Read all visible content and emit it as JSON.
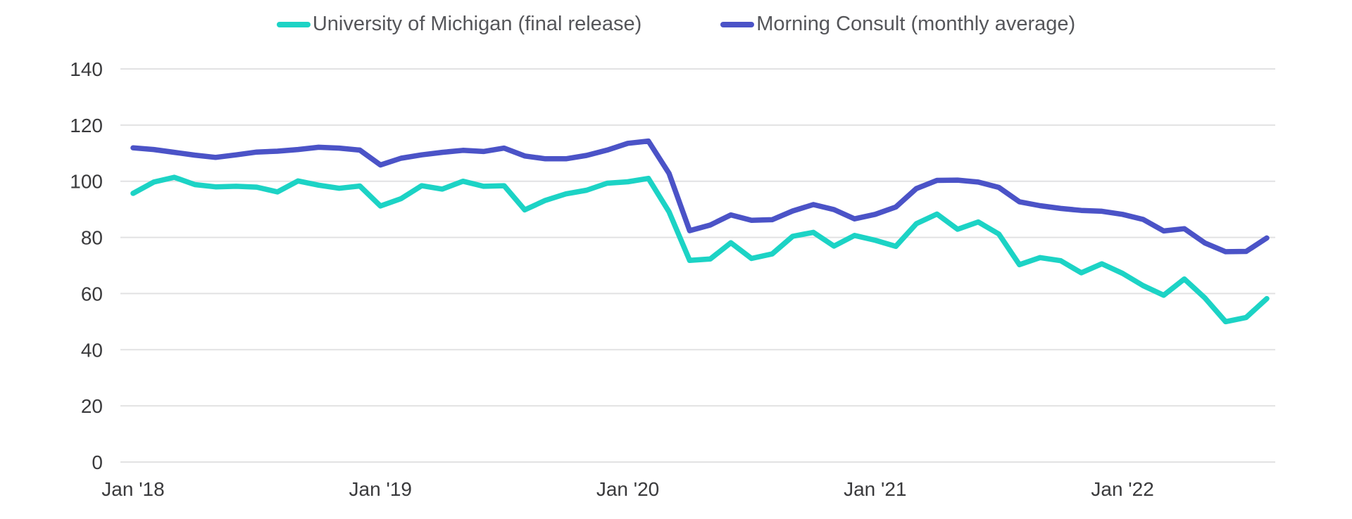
{
  "legend": {
    "items": [
      {
        "label": "University of Michigan (final release)",
        "color": "#1CD3C5"
      },
      {
        "label": "Morning Consult (monthly average)",
        "color": "#4B53C7"
      }
    ]
  },
  "colors": {
    "umich_line": "#1CD3C5",
    "morning_consult_line": "#4B53C7",
    "gridline": "#E2E2E3",
    "axis_text": "#3A3A3C",
    "legend_text": "#55565A",
    "background": "#FFFFFF"
  },
  "chart_data": {
    "type": "line",
    "title": "",
    "xlabel": "",
    "ylabel": "",
    "x_unit": "month",
    "x_start": "Jan 2018",
    "x_end": "Aug 2022",
    "n_points": 56,
    "ylim": [
      0,
      140
    ],
    "y_ticks": [
      0,
      20,
      40,
      60,
      80,
      100,
      120,
      140
    ],
    "x_tick_labels": [
      "Jan '18",
      "Jan '19",
      "Jan '20",
      "Jan '21",
      "Jan '22"
    ],
    "x_tick_month_indices": [
      0,
      12,
      24,
      36,
      48
    ],
    "grid": "horizontal",
    "legend_position": "top-center",
    "series": [
      {
        "name": "University of Michigan (final release)",
        "color": "#1CD3C5",
        "values": [
          95.7,
          99.7,
          101.4,
          98.8,
          98.0,
          98.2,
          97.9,
          96.2,
          100.1,
          98.6,
          97.5,
          98.3,
          91.2,
          93.8,
          98.4,
          97.2,
          100.0,
          98.2,
          98.4,
          89.8,
          93.2,
          95.5,
          96.8,
          99.3,
          99.8,
          101.0,
          89.1,
          71.8,
          72.3,
          78.1,
          72.5,
          74.1,
          80.4,
          81.8,
          76.9,
          80.7,
          79.0,
          76.8,
          84.9,
          88.3,
          82.9,
          85.5,
          81.2,
          70.3,
          72.8,
          71.7,
          67.4,
          70.6,
          67.2,
          62.8,
          59.4,
          65.2,
          58.4,
          50.0,
          51.5,
          58.2
        ]
      },
      {
        "name": "Morning Consult (monthly average)",
        "color": "#4B53C7",
        "values": [
          111.9,
          111.3,
          110.3,
          109.3,
          108.5,
          109.4,
          110.4,
          110.7,
          111.3,
          112.1,
          111.8,
          111.1,
          105.8,
          108.2,
          109.4,
          110.3,
          111.0,
          110.6,
          111.8,
          109.0,
          108.0,
          108.0,
          109.2,
          111.1,
          113.5,
          114.3,
          102.8,
          82.4,
          84.4,
          88.0,
          86.1,
          86.3,
          89.4,
          91.7,
          89.9,
          86.6,
          88.2,
          90.8,
          97.4,
          100.3,
          100.4,
          99.7,
          97.8,
          92.7,
          91.3,
          90.3,
          89.6,
          89.3,
          88.2,
          86.4,
          82.3,
          83.1,
          78.0,
          74.9,
          75.0,
          79.8
        ]
      }
    ]
  }
}
